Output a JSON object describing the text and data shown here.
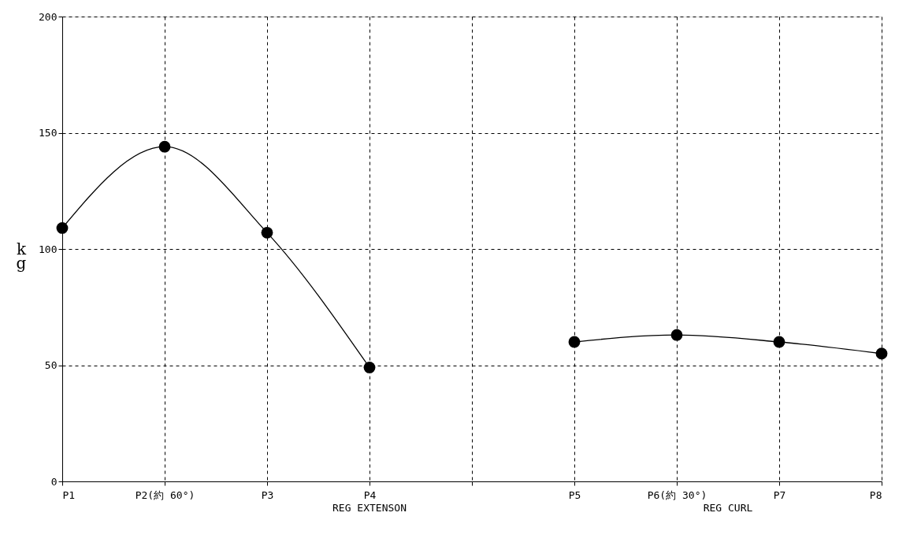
{
  "chart_data": {
    "type": "line",
    "ylabel": "kg",
    "categories": [
      "P1",
      "P2(約 60°)",
      "P3",
      "P4",
      null,
      "P5",
      "P6(約 30°)",
      "P7",
      "P8"
    ],
    "series": [
      {
        "color": "#000000",
        "values": [
          109,
          144,
          107,
          49,
          null,
          60,
          63,
          60,
          55
        ]
      }
    ],
    "ylim": [
      0,
      200
    ],
    "yticks": [
      0,
      50,
      100,
      150,
      200
    ],
    "grid": true,
    "marker": "circle",
    "line_style": "solid",
    "annotations": [
      "REG EXTENSON",
      "REG CURL"
    ]
  }
}
